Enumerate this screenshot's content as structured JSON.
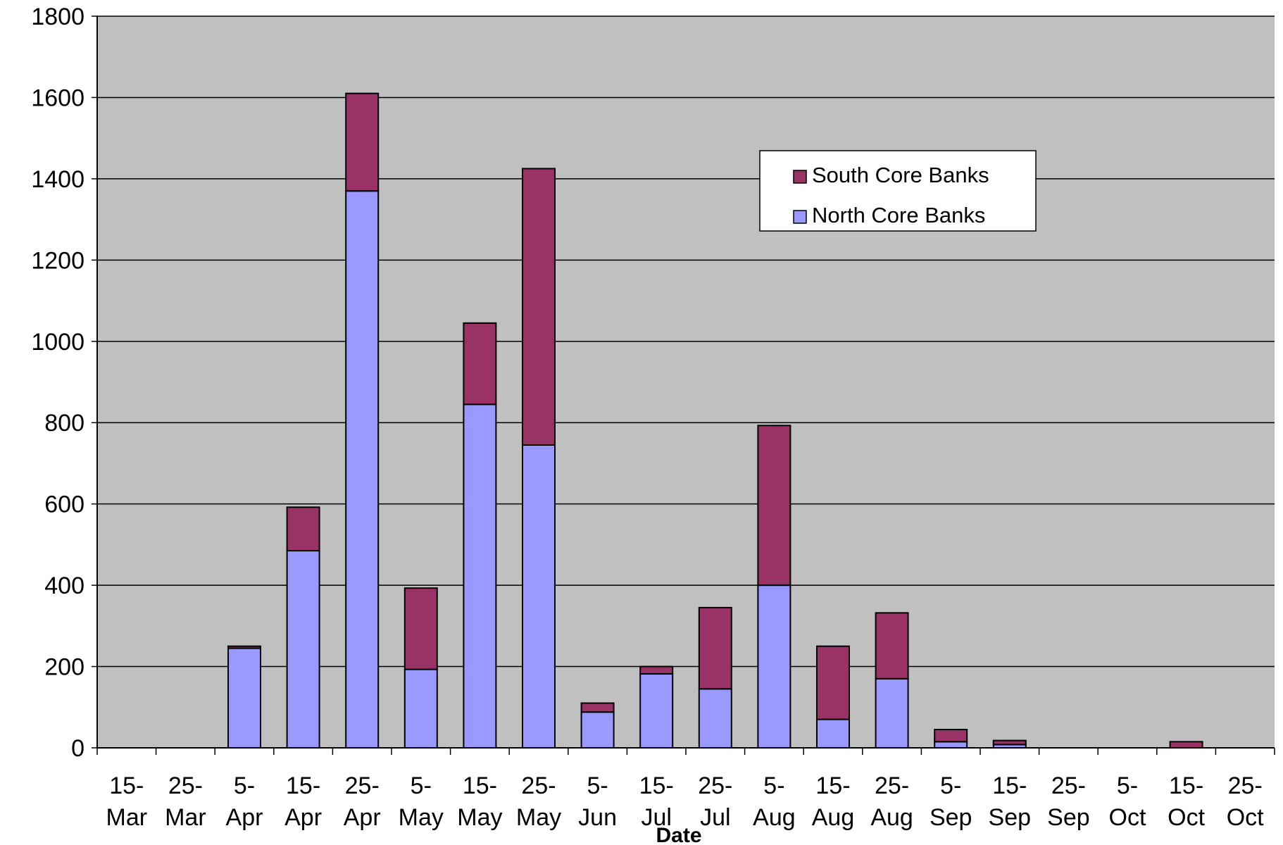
{
  "chart_data": {
    "type": "bar",
    "stacked": true,
    "title": "",
    "xlabel": "Date",
    "ylabel": "",
    "ylim": [
      0,
      1800
    ],
    "yticks": [
      0,
      200,
      400,
      600,
      800,
      1000,
      1200,
      1400,
      1600,
      1800
    ],
    "grid": true,
    "legend_position": "top-right",
    "plot_background": "#c0c0c0",
    "categories": [
      [
        "15-",
        "Mar"
      ],
      [
        "25-",
        "Mar"
      ],
      [
        "5-",
        "Apr"
      ],
      [
        "15-",
        "Apr"
      ],
      [
        "25-",
        "Apr"
      ],
      [
        "5-",
        "May"
      ],
      [
        "15-",
        "May"
      ],
      [
        "25-",
        "May"
      ],
      [
        "5-",
        "Jun"
      ],
      [
        "15-",
        "Jul"
      ],
      [
        "25-",
        "Jul"
      ],
      [
        "5-",
        "Aug"
      ],
      [
        "15-",
        "Aug"
      ],
      [
        "25-",
        "Aug"
      ],
      [
        "5-",
        "Sep"
      ],
      [
        "15-",
        "Sep"
      ],
      [
        "25-",
        "Sep"
      ],
      [
        "5-",
        "Oct"
      ],
      [
        "15-",
        "Oct"
      ],
      [
        "25-",
        "Oct"
      ]
    ],
    "series": [
      {
        "name": "North Core Banks",
        "color": "#9999ff",
        "values": [
          0,
          0,
          245,
          485,
          1370,
          193,
          845,
          745,
          88,
          182,
          145,
          400,
          70,
          170,
          15,
          8,
          0,
          0,
          0,
          0
        ]
      },
      {
        "name": "South Core Banks",
        "color": "#993366",
        "values": [
          0,
          0,
          5,
          107,
          240,
          200,
          200,
          680,
          22,
          18,
          200,
          393,
          180,
          162,
          30,
          10,
          0,
          0,
          15,
          0
        ]
      }
    ],
    "legend_order": [
      "South Core Banks",
      "North Core Banks"
    ]
  }
}
